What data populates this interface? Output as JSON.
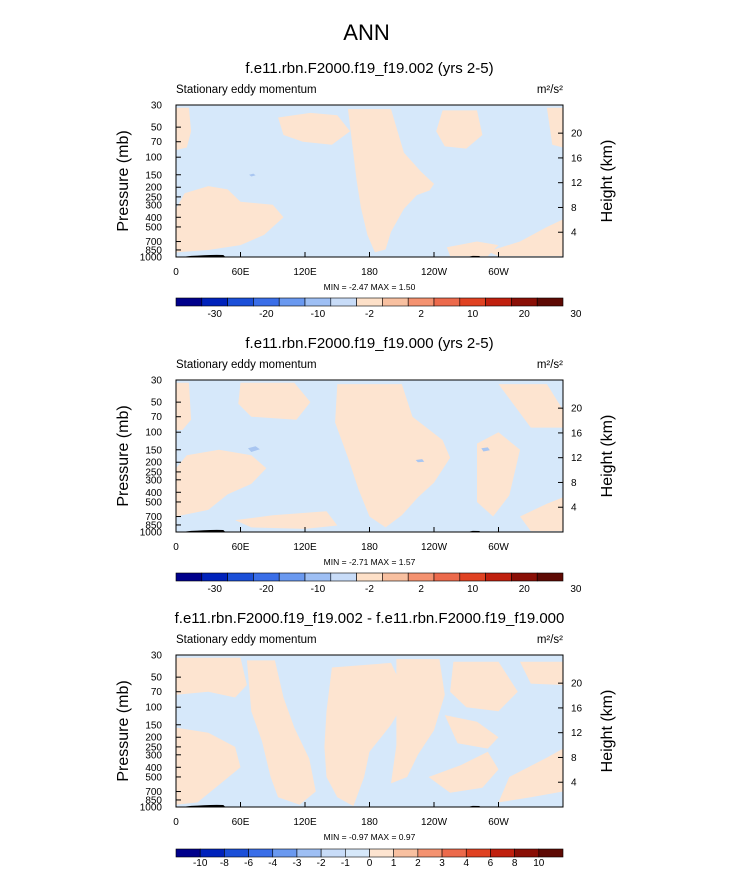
{
  "title": "ANN",
  "colors": {
    "fill_neg": "#d6e8fa",
    "fill_pos": "#fde4d0",
    "fill_neg_strong": "#a9c6f1"
  },
  "chart_data": [
    {
      "type": "heatmap",
      "title": "f.e11.rbn.F2000.f19_f19.002 (yrs 2-5)",
      "left_string": "Stationary eddy momentum",
      "units": "m²/s²",
      "ylabel": "Pressure (mb)",
      "ylabel_right": "Height (km)",
      "x_ticks": [
        "0",
        "60E",
        "120E",
        "180",
        "120W",
        "60W"
      ],
      "y_ticks": [
        "30",
        "50",
        "70",
        "100",
        "150",
        "200",
        "250",
        "300",
        "400",
        "500",
        "700",
        "850",
        "1000"
      ],
      "y_ticks_right": [
        "20",
        "16",
        "12",
        "8",
        "4"
      ],
      "min_max": "MIN =  -2.47   MAX =   1.50",
      "min": -2.47,
      "max": 1.5,
      "colorbar_labels": [
        "-30",
        "-20",
        "-10",
        "-2",
        "2",
        "10",
        "20",
        "30"
      ],
      "colorbar_colors": [
        "#00008b",
        "#0022bb",
        "#1b4fd8",
        "#3a6ee8",
        "#6a99f0",
        "#9ebff4",
        "#c8dcf8",
        "#fde0c8",
        "#f8c0a0",
        "#f49270",
        "#ec6a4c",
        "#e04222",
        "#c0200e",
        "#8a0f06",
        "#5e0a04"
      ]
    },
    {
      "type": "heatmap",
      "title": "f.e11.rbn.F2000.f19_f19.000 (yrs 2-5)",
      "left_string": "Stationary eddy momentum",
      "units": "m²/s²",
      "ylabel": "Pressure (mb)",
      "ylabel_right": "Height (km)",
      "x_ticks": [
        "0",
        "60E",
        "120E",
        "180",
        "120W",
        "60W"
      ],
      "y_ticks": [
        "30",
        "50",
        "70",
        "100",
        "150",
        "200",
        "250",
        "300",
        "400",
        "500",
        "700",
        "850",
        "1000"
      ],
      "y_ticks_right": [
        "20",
        "16",
        "12",
        "8",
        "4"
      ],
      "min_max": "MIN =  -2.71   MAX =   1.57",
      "min": -2.71,
      "max": 1.57,
      "colorbar_labels": [
        "-30",
        "-20",
        "-10",
        "-2",
        "2",
        "10",
        "20",
        "30"
      ],
      "colorbar_colors": [
        "#00008b",
        "#0022bb",
        "#1b4fd8",
        "#3a6ee8",
        "#6a99f0",
        "#9ebff4",
        "#c8dcf8",
        "#fde0c8",
        "#f8c0a0",
        "#f49270",
        "#ec6a4c",
        "#e04222",
        "#c0200e",
        "#8a0f06",
        "#5e0a04"
      ]
    },
    {
      "type": "heatmap",
      "title": "f.e11.rbn.F2000.f19_f19.002 - f.e11.rbn.F2000.f19_f19.000",
      "left_string": "Stationary eddy momentum",
      "units": "m²/s²",
      "ylabel": "Pressure (mb)",
      "ylabel_right": "Height (km)",
      "x_ticks": [
        "0",
        "60E",
        "120E",
        "180",
        "120W",
        "60W"
      ],
      "y_ticks": [
        "30",
        "50",
        "70",
        "100",
        "150",
        "200",
        "250",
        "300",
        "400",
        "500",
        "700",
        "850",
        "1000"
      ],
      "y_ticks_right": [
        "20",
        "16",
        "12",
        "8",
        "4"
      ],
      "min_max": "MIN =  -0.97   MAX =   0.97",
      "min": -0.97,
      "max": 0.97,
      "colorbar_labels": [
        "-10",
        "-8",
        "-6",
        "-4",
        "-3",
        "-2",
        "-1",
        "0",
        "1",
        "2",
        "3",
        "4",
        "6",
        "8",
        "10"
      ],
      "colorbar_colors": [
        "#00008b",
        "#0022bb",
        "#1b4fd8",
        "#3a6ee8",
        "#6a99f0",
        "#9ebff4",
        "#c8dcf8",
        "#d6e8fa",
        "#fde4d0",
        "#f8c0a0",
        "#f49270",
        "#ec6a4c",
        "#e04222",
        "#c0200e",
        "#8a0f06",
        "#5e0a04"
      ]
    }
  ]
}
